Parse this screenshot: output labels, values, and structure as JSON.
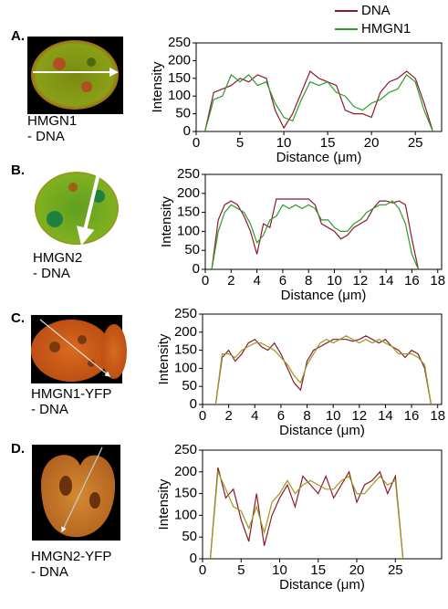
{
  "chart_data": [
    {
      "type": "line",
      "panel_label": "A.",
      "caption": [
        "HMGN1",
        "- DNA"
      ],
      "x_label": "Distance (μm)",
      "y_label": "Intensity",
      "legend": true,
      "x": [
        1,
        2,
        3,
        4,
        5,
        6,
        7,
        8,
        9,
        10,
        11,
        12,
        13,
        14,
        15,
        16,
        17,
        18,
        19,
        20,
        21,
        22,
        23,
        24,
        25,
        26,
        27
      ],
      "series": [
        {
          "name": "DNA",
          "color": "#8b1a2a",
          "values": [
            0,
            110,
            120,
            130,
            150,
            140,
            160,
            150,
            60,
            10,
            50,
            110,
            170,
            150,
            140,
            130,
            60,
            50,
            50,
            40,
            110,
            140,
            150,
            170,
            150,
            80,
            0
          ]
        },
        {
          "name": "HMGN1",
          "color": "#2e9a2e",
          "values": [
            0,
            90,
            100,
            160,
            140,
            160,
            130,
            140,
            80,
            40,
            30,
            90,
            140,
            130,
            140,
            110,
            100,
            70,
            60,
            80,
            90,
            110,
            120,
            160,
            140,
            60,
            0
          ]
        }
      ],
      "xlim": [
        0,
        28
      ],
      "ylim": [
        0,
        250
      ],
      "xticks": [
        0,
        5,
        10,
        15,
        20,
        25
      ],
      "yticks": [
        0,
        50,
        100,
        150,
        200,
        250
      ]
    },
    {
      "type": "line",
      "panel_label": "B.",
      "caption": [
        "HMGN2",
        "- DNA"
      ],
      "x_label": "Distance (μm)",
      "y_label": "Intensity",
      "x": [
        0.5,
        1,
        1.5,
        2,
        2.5,
        3,
        3.5,
        4,
        4.5,
        5,
        5.5,
        6,
        6.5,
        7,
        7.5,
        8,
        8.5,
        9,
        9.5,
        10,
        10.5,
        11,
        11.5,
        12,
        12.5,
        13,
        13.5,
        14,
        14.5,
        15,
        15.5,
        16,
        16.5
      ],
      "series": [
        {
          "color": "#8b1a2a",
          "values": [
            0,
            130,
            170,
            180,
            170,
            140,
            100,
            40,
            120,
            110,
            185,
            185,
            185,
            185,
            185,
            185,
            170,
            120,
            110,
            100,
            80,
            90,
            110,
            120,
            130,
            160,
            180,
            180,
            175,
            180,
            170,
            80,
            0
          ]
        },
        {
          "color": "#2e9a2e",
          "values": [
            0,
            100,
            150,
            170,
            160,
            150,
            120,
            70,
            90,
            130,
            140,
            170,
            160,
            170,
            160,
            170,
            160,
            130,
            130,
            110,
            100,
            100,
            120,
            130,
            150,
            160,
            170,
            170,
            180,
            160,
            120,
            40,
            0
          ]
        }
      ],
      "xlim": [
        0,
        18.3
      ],
      "ylim": [
        0,
        250
      ],
      "xticks": [
        0,
        2,
        4,
        6,
        8,
        10,
        12,
        14,
        16,
        18
      ],
      "yticks": [
        0,
        50,
        100,
        150,
        200,
        250
      ]
    },
    {
      "type": "line",
      "panel_label": "C.",
      "caption": [
        "HMGN1-YFP",
        "- DNA"
      ],
      "x_label": "Distance (μm)",
      "y_label": "Intensity",
      "x": [
        1,
        1.5,
        2,
        2.5,
        3,
        3.5,
        4,
        4.5,
        5,
        5.5,
        6,
        6.5,
        7,
        7.5,
        8,
        8.5,
        9,
        9.5,
        10,
        10.5,
        11,
        11.5,
        12,
        12.5,
        13,
        13.5,
        14,
        14.5,
        15,
        15.5,
        16,
        16.5,
        17,
        17.5
      ],
      "series": [
        {
          "color": "#8b1a2a",
          "values": [
            0,
            130,
            150,
            120,
            140,
            170,
            180,
            160,
            150,
            170,
            140,
            100,
            60,
            40,
            120,
            150,
            160,
            170,
            180,
            180,
            180,
            175,
            180,
            190,
            180,
            170,
            180,
            160,
            150,
            130,
            150,
            140,
            100,
            0
          ]
        },
        {
          "color": "#9a9a20",
          "values": [
            0,
            140,
            140,
            130,
            150,
            160,
            170,
            170,
            160,
            150,
            130,
            110,
            80,
            60,
            110,
            140,
            170,
            180,
            170,
            180,
            190,
            180,
            170,
            180,
            170,
            180,
            170,
            160,
            140,
            140,
            140,
            130,
            110,
            0
          ]
        }
      ],
      "xlim": [
        0,
        18.3
      ],
      "ylim": [
        0,
        250
      ],
      "xticks": [
        0,
        2,
        4,
        6,
        8,
        10,
        12,
        14,
        16,
        18
      ],
      "yticks": [
        0,
        50,
        100,
        150,
        200,
        250
      ]
    },
    {
      "type": "line",
      "panel_label": "D.",
      "caption": [
        "HMGN2-YFP",
        "- DNA"
      ],
      "x_label": "Distance (μm)",
      "y_label": "Intensity",
      "x": [
        1,
        2,
        3,
        4,
        5,
        6,
        7,
        8,
        9,
        10,
        11,
        12,
        13,
        14,
        15,
        16,
        17,
        18,
        19,
        20,
        21,
        22,
        23,
        24,
        25,
        26
      ],
      "series": [
        {
          "color": "#8b1a2a",
          "values": [
            0,
            210,
            140,
            160,
            90,
            40,
            150,
            30,
            100,
            140,
            170,
            120,
            190,
            170,
            150,
            190,
            140,
            170,
            200,
            130,
            170,
            180,
            200,
            150,
            190,
            0
          ]
        },
        {
          "color": "#9a9a20",
          "values": [
            0,
            200,
            160,
            120,
            110,
            70,
            120,
            60,
            130,
            150,
            180,
            150,
            170,
            180,
            170,
            160,
            160,
            180,
            190,
            150,
            150,
            170,
            190,
            170,
            180,
            0
          ]
        }
      ],
      "xlim": [
        0,
        31
      ],
      "ylim": [
        0,
        250
      ],
      "xticks": [
        0,
        5,
        10,
        15,
        20,
        25
      ],
      "yticks": [
        0,
        50,
        100,
        150,
        200,
        250
      ]
    }
  ]
}
